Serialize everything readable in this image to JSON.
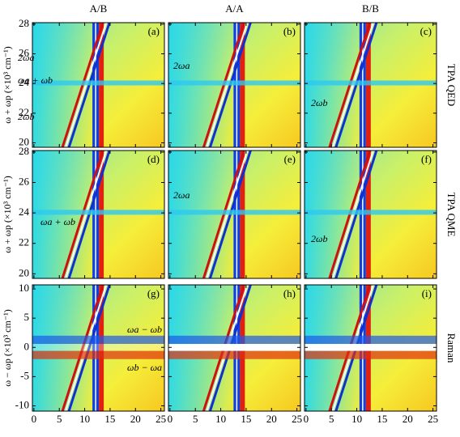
{
  "chart_data": {
    "type": "contour",
    "column_titles": [
      "A/B",
      "A/A",
      "B/B"
    ],
    "row_titles": [
      "TPA QED",
      "TPA QME",
      "Raman"
    ],
    "y_labels": [
      "ω + ωp (×10³ cm⁻¹)",
      "ω + ωp (×10³ cm⁻¹)",
      "ω − ωp (×10³ cm⁻¹)"
    ],
    "xlim": [
      -0.3,
      25.7
    ],
    "xticks": [
      0,
      5,
      10,
      15,
      20,
      25
    ],
    "ylims": [
      [
        19.7,
        28.1
      ],
      [
        19.7,
        28.1
      ],
      [
        -10.9,
        10.7
      ]
    ],
    "yticks": [
      [
        20,
        22,
        24,
        26,
        28
      ],
      [
        20,
        22,
        24,
        26,
        28
      ],
      [
        -10,
        -5,
        0,
        5,
        10
      ]
    ],
    "panels": [
      {
        "label": "(a)",
        "annotations": [
          "2ωa",
          "ωa + ωb",
          "2ωb"
        ]
      },
      {
        "label": "(b)",
        "annotations": [
          "2ωa"
        ]
      },
      {
        "label": "(c)",
        "annotations": [
          "2ωb"
        ]
      },
      {
        "label": "(d)",
        "annotations": [
          "ωa + ωb"
        ]
      },
      {
        "label": "(e)",
        "annotations": [
          "2ωa"
        ]
      },
      {
        "label": "(f)",
        "annotations": [
          "2ωb"
        ]
      },
      {
        "label": "(g)",
        "annotations": [
          "ωa − ωb",
          "ωb − ωa"
        ]
      },
      {
        "label": "(h)",
        "annotations": []
      },
      {
        "label": "(i)",
        "annotations": []
      }
    ]
  }
}
